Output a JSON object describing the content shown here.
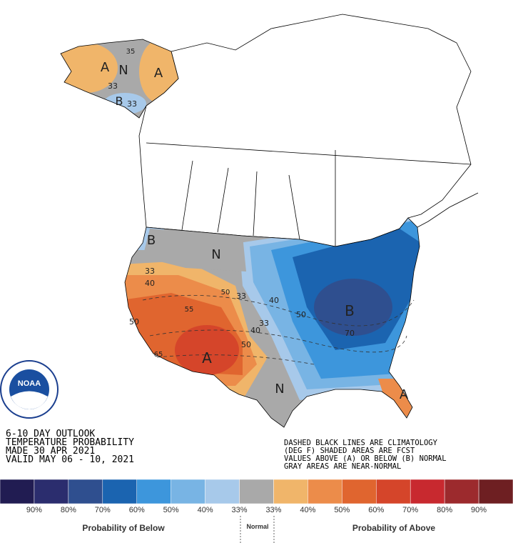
{
  "outlook": {
    "title_lines": [
      "6-10 DAY OUTLOOK",
      "TEMPERATURE PROBABILITY",
      "MADE  30 APR 2021",
      "VALID  MAY 06 - 10, 2021"
    ],
    "notes": [
      "DASHED BLACK LINES ARE CLIMATOLOGY",
      "(DEG F) SHADED AREAS ARE FCST",
      "VALUES ABOVE (A) OR BELOW (B) NORMAL",
      "GRAY AREAS ARE NEAR-NORMAL"
    ]
  },
  "logo": {
    "text": "NOAA"
  },
  "map_labels": [
    "A",
    "N",
    "A",
    "B",
    "33",
    "33",
    "35",
    "B",
    "N",
    "33",
    "40",
    "50",
    "55",
    "50",
    "33",
    "40",
    "50",
    "33",
    "40",
    "B",
    "70",
    "A",
    "50",
    "N",
    "A",
    "65"
  ],
  "legend": {
    "colors": [
      "#211c52",
      "#2b2d6e",
      "#2f4f8f",
      "#1b64b0",
      "#3d96dc",
      "#78b4e4",
      "#a7c9ea",
      "#a9a9a9",
      "#f0b56a",
      "#ec8c4a",
      "#e0652f",
      "#d5452a",
      "#c8292f",
      "#9c2a2d",
      "#6e1f22"
    ],
    "labels": [
      "90%",
      "80%",
      "70%",
      "60%",
      "50%",
      "40%",
      "33%",
      "33%",
      "40%",
      "50%",
      "60%",
      "70%",
      "80%",
      "90%"
    ],
    "below_caption": "Probability of Below",
    "normal_caption": "Normal",
    "above_caption": "Probability of Above"
  }
}
